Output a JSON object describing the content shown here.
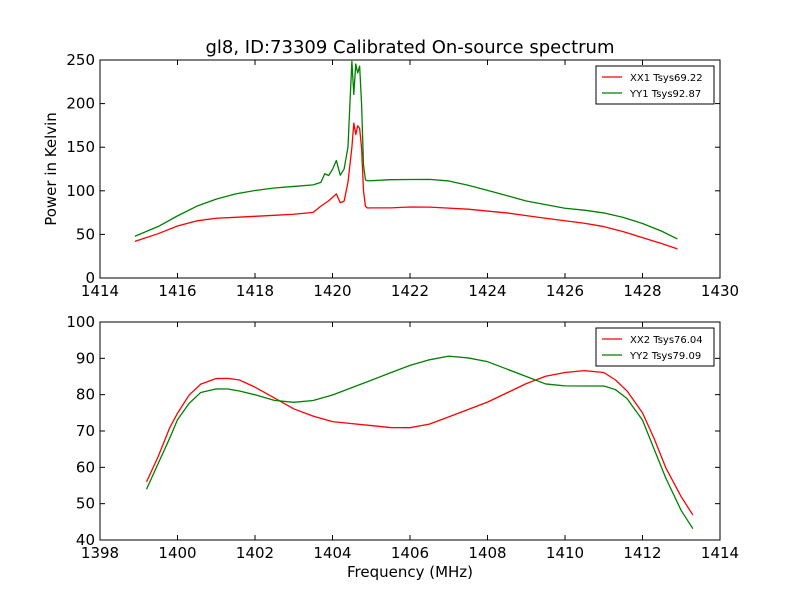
{
  "figure_title": "gl8, ID:73309 Calibrated On-source spectrum",
  "colors": {
    "xx": "#ff0000",
    "yy": "#008000"
  },
  "chart_data": [
    {
      "type": "line",
      "title": "gl8, ID:73309 Calibrated On-source spectrum",
      "xlabel": "",
      "ylabel": "Power in Kelvin",
      "xlim": [
        1414,
        1430
      ],
      "ylim": [
        0,
        250
      ],
      "xticks": [
        1414,
        1416,
        1418,
        1420,
        1422,
        1424,
        1426,
        1428,
        1430
      ],
      "yticks": [
        0,
        50,
        100,
        150,
        200,
        250
      ],
      "grid": false,
      "legend": "top-right",
      "series": [
        {
          "name": "XX1 Tsys69.22",
          "color": "#ff0000",
          "x": [
            1414.9,
            1415.5,
            1416.0,
            1416.5,
            1417.0,
            1417.5,
            1418.0,
            1418.5,
            1419.0,
            1419.5,
            1419.7,
            1419.9,
            1420.1,
            1420.2,
            1420.3,
            1420.4,
            1420.5,
            1420.55,
            1420.6,
            1420.65,
            1420.7,
            1420.75,
            1420.8,
            1420.85,
            1420.9,
            1421.0,
            1421.5,
            1422.0,
            1422.5,
            1423.0,
            1423.5,
            1424.0,
            1424.5,
            1425.0,
            1425.5,
            1426.0,
            1426.5,
            1427.0,
            1427.5,
            1428.0,
            1428.5,
            1428.9
          ],
          "y": [
            42,
            51,
            60,
            66,
            69,
            70,
            71,
            72,
            73,
            75,
            82,
            88,
            96,
            86,
            88,
            110,
            150,
            178,
            165,
            175,
            172,
            150,
            100,
            82,
            80,
            80,
            80,
            81,
            81,
            80,
            79,
            77,
            75,
            72,
            69,
            66,
            63,
            59,
            53,
            46,
            39,
            33
          ]
        },
        {
          "name": "YY1 Tsys92.87",
          "color": "#008000",
          "x": [
            1414.9,
            1415.5,
            1416.0,
            1416.5,
            1417.0,
            1417.5,
            1418.0,
            1418.5,
            1419.0,
            1419.5,
            1419.7,
            1419.8,
            1419.9,
            1420.0,
            1420.1,
            1420.2,
            1420.3,
            1420.4,
            1420.45,
            1420.5,
            1420.55,
            1420.6,
            1420.65,
            1420.7,
            1420.75,
            1420.8,
            1420.85,
            1420.9,
            1421.0,
            1421.5,
            1422.0,
            1422.5,
            1423.0,
            1423.5,
            1424.0,
            1424.5,
            1425.0,
            1425.5,
            1426.0,
            1426.5,
            1427.0,
            1427.5,
            1428.0,
            1428.5,
            1428.9
          ],
          "y": [
            48,
            59,
            71,
            82,
            90,
            96,
            100,
            103,
            105,
            107,
            110,
            120,
            118,
            125,
            135,
            118,
            125,
            150,
            200,
            248,
            210,
            245,
            235,
            243,
            200,
            130,
            113,
            112,
            112,
            113,
            113,
            113,
            111,
            106,
            100,
            94,
            88,
            84,
            80,
            78,
            75,
            70,
            63,
            54,
            45
          ]
        }
      ]
    },
    {
      "type": "line",
      "title": "",
      "xlabel": "Frequency (MHz)",
      "ylabel": "",
      "xlim": [
        1398,
        1414
      ],
      "ylim": [
        40,
        100
      ],
      "xticks": [
        1398,
        1400,
        1402,
        1404,
        1406,
        1408,
        1410,
        1412,
        1414
      ],
      "yticks": [
        40,
        50,
        60,
        70,
        80,
        90,
        100
      ],
      "grid": false,
      "legend": "top-right",
      "series": [
        {
          "name": "XX2 Tsys76.04",
          "color": "#ff0000",
          "x": [
            1399.2,
            1399.5,
            1399.8,
            1400.0,
            1400.3,
            1400.6,
            1401.0,
            1401.3,
            1401.6,
            1402.0,
            1402.5,
            1403.0,
            1403.5,
            1404.0,
            1404.5,
            1405.0,
            1405.5,
            1406.0,
            1406.5,
            1407.0,
            1407.5,
            1408.0,
            1408.5,
            1409.0,
            1409.5,
            1410.0,
            1410.5,
            1411.0,
            1411.3,
            1411.6,
            1412.0,
            1412.3,
            1412.6,
            1413.0,
            1413.3
          ],
          "y": [
            56,
            63,
            71,
            75,
            80,
            83,
            84.5,
            84.5,
            84,
            82,
            79,
            76,
            74,
            72.5,
            72,
            71.5,
            71,
            71,
            72,
            74,
            76,
            78,
            80.5,
            83,
            85,
            86,
            86.5,
            86,
            84,
            81,
            75,
            68,
            60,
            52,
            47
          ]
        },
        {
          "name": "YY2 Tsys79.09",
          "color": "#008000",
          "x": [
            1399.2,
            1399.5,
            1399.8,
            1400.0,
            1400.3,
            1400.6,
            1401.0,
            1401.3,
            1401.6,
            1402.0,
            1402.5,
            1403.0,
            1403.5,
            1404.0,
            1404.5,
            1405.0,
            1405.5,
            1406.0,
            1406.5,
            1407.0,
            1407.5,
            1408.0,
            1408.5,
            1409.0,
            1409.5,
            1410.0,
            1410.5,
            1411.0,
            1411.3,
            1411.6,
            1412.0,
            1412.3,
            1412.6,
            1413.0,
            1413.3
          ],
          "y": [
            54,
            61,
            68,
            73,
            77.5,
            80.5,
            81.5,
            81.5,
            81,
            80,
            78.5,
            78,
            78.5,
            80,
            82,
            84,
            86,
            88,
            89.5,
            90.5,
            90,
            89,
            87,
            85,
            83,
            82.5,
            82.5,
            82.5,
            81.5,
            79,
            73,
            65,
            57,
            48,
            43
          ]
        }
      ]
    }
  ]
}
